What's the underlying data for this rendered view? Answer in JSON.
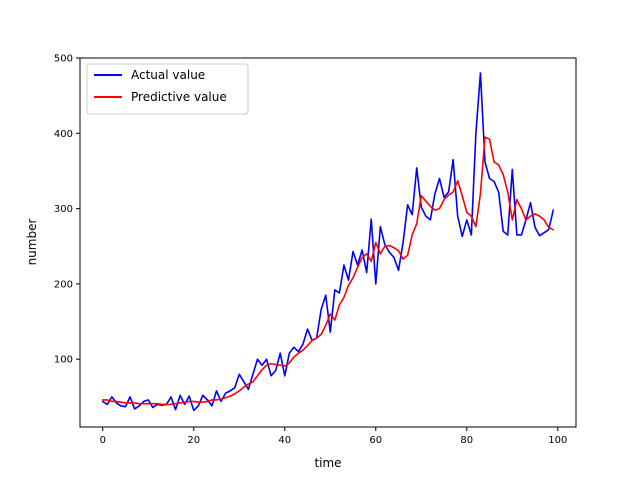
{
  "chart_data": {
    "type": "line",
    "title": "",
    "xlabel": "time",
    "ylabel": "number",
    "xlim": [
      -5,
      104
    ],
    "ylim": [
      10,
      500
    ],
    "xticks": [
      0,
      20,
      40,
      60,
      80,
      100
    ],
    "yticks": [
      100,
      200,
      300,
      400,
      500
    ],
    "grid": false,
    "legend_position": "upper-left",
    "x": [
      0,
      1,
      2,
      3,
      4,
      5,
      6,
      7,
      8,
      9,
      10,
      11,
      12,
      13,
      14,
      15,
      16,
      17,
      18,
      19,
      20,
      21,
      22,
      23,
      24,
      25,
      26,
      27,
      28,
      29,
      30,
      31,
      32,
      33,
      34,
      35,
      36,
      37,
      38,
      39,
      40,
      41,
      42,
      43,
      44,
      45,
      46,
      47,
      48,
      49,
      50,
      51,
      52,
      53,
      54,
      55,
      56,
      57,
      58,
      59,
      60,
      61,
      62,
      63,
      64,
      65,
      66,
      67,
      68,
      69,
      70,
      71,
      72,
      73,
      74,
      75,
      76,
      77,
      78,
      79,
      80,
      81,
      82,
      83,
      84,
      85,
      86,
      87,
      88,
      89,
      90,
      91,
      92,
      93,
      94,
      95,
      96,
      97,
      98,
      99
    ],
    "series": [
      {
        "name": "Actual value",
        "color": "#0000ff",
        "values": [
          44,
          40,
          50,
          42,
          38,
          37,
          50,
          34,
          38,
          44,
          46,
          36,
          40,
          39,
          40,
          50,
          33,
          52,
          40,
          51,
          32,
          38,
          52,
          46,
          38,
          58,
          44,
          55,
          58,
          62,
          80,
          70,
          60,
          80,
          100,
          92,
          100,
          78,
          85,
          108,
          78,
          108,
          116,
          110,
          120,
          140,
          125,
          128,
          166,
          185,
          136,
          192,
          188,
          225,
          205,
          243,
          225,
          245,
          215,
          286,
          200,
          276,
          252,
          242,
          235,
          218,
          255,
          305,
          292,
          354,
          302,
          290,
          285,
          320,
          340,
          315,
          322,
          365,
          290,
          263,
          285,
          265,
          400,
          480,
          362,
          340,
          336,
          322,
          270,
          265,
          352,
          265,
          265,
          285,
          308,
          275,
          264,
          268,
          272,
          298
        ]
      },
      {
        "name": "Predictive value",
        "color": "#ff0000",
        "values": [
          46,
          46,
          44,
          44,
          43,
          42,
          42,
          42,
          41,
          41,
          41,
          41,
          41,
          40,
          40,
          40,
          41,
          42,
          43,
          44,
          44,
          43,
          43,
          44,
          46,
          46,
          47,
          49,
          51,
          54,
          58,
          63,
          67,
          70,
          78,
          86,
          92,
          94,
          93,
          92,
          91,
          95,
          103,
          108,
          112,
          118,
          125,
          128,
          133,
          145,
          160,
          152,
          172,
          182,
          198,
          208,
          222,
          235,
          240,
          230,
          255,
          240,
          250,
          251,
          248,
          244,
          233,
          238,
          265,
          280,
          317,
          310,
          303,
          298,
          300,
          312,
          318,
          322,
          337,
          317,
          295,
          290,
          276,
          320,
          395,
          392,
          362,
          358,
          345,
          322,
          285,
          312,
          300,
          285,
          290,
          293,
          290,
          285,
          275,
          272
        ]
      }
    ]
  }
}
